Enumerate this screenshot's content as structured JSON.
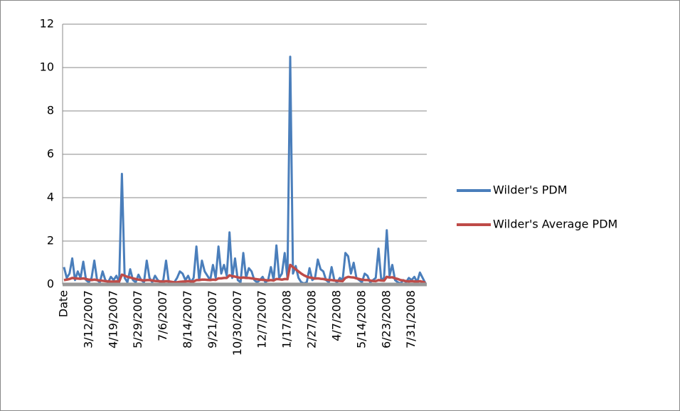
{
  "chart_data": {
    "type": "line",
    "categories": [
      "Date",
      null,
      null,
      null,
      null,
      null,
      null,
      null,
      null,
      "3/12/2007",
      null,
      null,
      null,
      null,
      null,
      null,
      null,
      null,
      "4/19/2007",
      null,
      null,
      null,
      null,
      null,
      null,
      null,
      null,
      "5/29/2007",
      null,
      null,
      null,
      null,
      null,
      null,
      null,
      null,
      "7/6/2007",
      null,
      null,
      null,
      null,
      null,
      null,
      null,
      null,
      "8/14/2007",
      null,
      null,
      null,
      null,
      null,
      null,
      null,
      null,
      "9/21/2007",
      null,
      null,
      null,
      null,
      null,
      null,
      null,
      null,
      "10/30/2007",
      null,
      null,
      null,
      null,
      null,
      null,
      null,
      null,
      "12/7/2007",
      null,
      null,
      null,
      null,
      null,
      null,
      null,
      null,
      "1/17/2008",
      null,
      null,
      null,
      null,
      null,
      null,
      null,
      null,
      "2/27/2008",
      null,
      null,
      null,
      null,
      null,
      null,
      null,
      null,
      "4/7/2008",
      null,
      null,
      null,
      null,
      null,
      null,
      null,
      null,
      "5/14/2008",
      null,
      null,
      null,
      null,
      null,
      null,
      null,
      null,
      "6/23/2008",
      null,
      null,
      null,
      null,
      null,
      null,
      null,
      null,
      "7/31/2008",
      null,
      null,
      null,
      null,
      null
    ],
    "series": [
      {
        "name": "Wilder's PDM",
        "color": "#4a7ebb",
        "values": [
          0.8,
          0.3,
          0.5,
          1.2,
          0.2,
          0.6,
          0.3,
          1.05,
          0.2,
          0.1,
          0.3,
          1.1,
          0.2,
          0.1,
          0.6,
          0.2,
          0.1,
          0.35,
          0.2,
          0.4,
          0.1,
          5.1,
          0.3,
          0.1,
          0.7,
          0.2,
          0.1,
          0.45,
          0.2,
          0.1,
          1.1,
          0.3,
          0.1,
          0.4,
          0.2,
          0.1,
          0.2,
          1.1,
          0.1,
          0.05,
          0.1,
          0.3,
          0.6,
          0.5,
          0.2,
          0.4,
          0.1,
          0.3,
          1.75,
          0.2,
          1.1,
          0.6,
          0.4,
          0.2,
          0.9,
          0.3,
          1.75,
          0.5,
          0.9,
          0.4,
          2.4,
          0.3,
          1.2,
          0.2,
          0.1,
          1.45,
          0.3,
          0.75,
          0.6,
          0.2,
          0.1,
          0.2,
          0.35,
          0.1,
          0.2,
          0.8,
          0.2,
          1.8,
          0.3,
          0.5,
          1.45,
          0.3,
          10.5,
          0.5,
          0.85,
          0.3,
          0.1,
          0.05,
          0.1,
          0.75,
          0.2,
          0.3,
          1.15,
          0.7,
          0.6,
          0.2,
          0.1,
          0.8,
          0.2,
          0.1,
          0.3,
          0.2,
          1.45,
          1.3,
          0.5,
          1.0,
          0.3,
          0.2,
          0.1,
          0.5,
          0.4,
          0.1,
          0.2,
          0.3,
          1.65,
          0.2,
          0.3,
          2.5,
          0.4,
          0.9,
          0.2,
          0.1,
          0.05,
          0.2,
          0.1,
          0.3,
          0.2,
          0.35,
          0.1,
          0.55,
          0.3,
          0.05
        ]
      },
      {
        "name": "Wilder's Average PDM",
        "color": "#be4b48",
        "values": [
          0.2,
          0.22,
          0.25,
          0.3,
          0.28,
          0.27,
          0.26,
          0.28,
          0.25,
          0.22,
          0.2,
          0.22,
          0.2,
          0.18,
          0.17,
          0.15,
          0.14,
          0.13,
          0.13,
          0.14,
          0.13,
          0.45,
          0.4,
          0.35,
          0.32,
          0.28,
          0.25,
          0.22,
          0.2,
          0.18,
          0.2,
          0.2,
          0.18,
          0.16,
          0.15,
          0.14,
          0.13,
          0.15,
          0.14,
          0.12,
          0.1,
          0.1,
          0.12,
          0.13,
          0.14,
          0.15,
          0.14,
          0.14,
          0.2,
          0.2,
          0.22,
          0.22,
          0.21,
          0.2,
          0.22,
          0.21,
          0.28,
          0.28,
          0.3,
          0.3,
          0.42,
          0.38,
          0.36,
          0.33,
          0.3,
          0.32,
          0.3,
          0.3,
          0.28,
          0.26,
          0.24,
          0.22,
          0.21,
          0.2,
          0.18,
          0.2,
          0.18,
          0.25,
          0.24,
          0.22,
          0.25,
          0.24,
          0.9,
          0.8,
          0.7,
          0.6,
          0.5,
          0.42,
          0.36,
          0.32,
          0.3,
          0.27,
          0.28,
          0.26,
          0.25,
          0.22,
          0.2,
          0.2,
          0.18,
          0.17,
          0.16,
          0.15,
          0.3,
          0.35,
          0.33,
          0.32,
          0.28,
          0.25,
          0.22,
          0.2,
          0.2,
          0.18,
          0.16,
          0.15,
          0.2,
          0.18,
          0.17,
          0.35,
          0.32,
          0.33,
          0.28,
          0.25,
          0.2,
          0.18,
          0.15,
          0.14,
          0.15,
          0.14,
          0.13,
          0.15,
          0.12,
          0.08
        ]
      }
    ],
    "ylim": [
      0,
      12
    ],
    "yticks": [
      0,
      2,
      4,
      6,
      8,
      10,
      12
    ],
    "grid": true,
    "legend": "right"
  }
}
